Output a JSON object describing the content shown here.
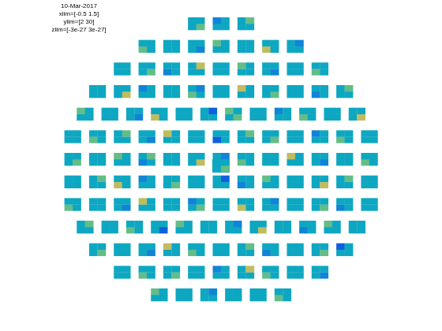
{
  "chart_data": {
    "type": "multiplot",
    "title": [
      "10-Mar-2017",
      "xlim=[-0.5 1.5]",
      "ylim=[2 30]",
      "zlim=[-3e-27 3e-27]"
    ],
    "xlim": [
      -0.5,
      1.5
    ],
    "ylim": [
      2,
      30
    ],
    "zlim": [
      -3e-27,
      3e-27
    ],
    "tick_labels": false,
    "panels": [
      [
        [
          0,
          1e-27
        ],
        [
          0,
          0
        ]
      ],
      [
        [
          0,
          0
        ],
        [
          -1e-27,
          0
        ]
      ],
      [
        [
          0,
          0
        ],
        [
          0,
          1e-27
        ]
      ],
      [
        [
          1e-27,
          0
        ],
        [
          0,
          0
        ]
      ],
      [
        [
          0,
          0
        ],
        [
          0,
          0
        ]
      ],
      [
        [
          0,
          -1e-27
        ],
        [
          0,
          0
        ]
      ],
      [
        [
          0,
          0
        ],
        [
          1e-27,
          0
        ]
      ],
      [
        [
          0,
          0
        ],
        [
          0,
          0
        ]
      ],
      [
        [
          2e-27,
          0
        ],
        [
          0,
          0
        ]
      ],
      [
        [
          0,
          0
        ],
        [
          0,
          -1e-27
        ]
      ],
      [
        [
          0,
          0
        ],
        [
          0,
          0
        ]
      ],
      [
        [
          0,
          1e-27
        ],
        [
          0,
          0
        ]
      ],
      [
        [
          -1e-27,
          0
        ],
        [
          0,
          0
        ]
      ],
      [
        [
          0,
          0
        ],
        [
          0,
          2e-27
        ]
      ],
      [
        [
          0,
          0
        ],
        [
          0,
          0
        ]
      ],
      [
        [
          0,
          0
        ],
        [
          1e-27,
          0
        ]
      ],
      [
        [
          0,
          -1e-27
        ],
        [
          0,
          0
        ]
      ],
      [
        [
          0,
          0
        ],
        [
          0,
          0
        ]
      ],
      [
        [
          1e-27,
          0
        ],
        [
          0,
          0
        ]
      ],
      [
        [
          0,
          0
        ],
        [
          0,
          0
        ]
      ],
      [
        [
          0,
          2e-27
        ],
        [
          0,
          0
        ]
      ],
      [
        [
          0,
          0
        ],
        [
          -1e-27,
          0
        ]
      ],
      [
        [
          0,
          0
        ],
        [
          0,
          0
        ]
      ],
      [
        [
          1e-27,
          0
        ],
        [
          0,
          -1e-27
        ]
      ],
      [
        [
          0,
          0
        ],
        [
          0,
          0
        ]
      ],
      [
        [
          0,
          0
        ],
        [
          2e-27,
          0
        ]
      ],
      [
        [
          0,
          1e-27
        ],
        [
          0,
          0
        ]
      ],
      [
        [
          0,
          0
        ],
        [
          0,
          0
        ]
      ],
      [
        [
          -1e-27,
          0
        ],
        [
          0,
          0
        ]
      ],
      [
        [
          0,
          0
        ],
        [
          0,
          1e-27
        ]
      ],
      [
        [
          0,
          0
        ],
        [
          1e-27,
          0
        ]
      ],
      [
        [
          0,
          0
        ],
        [
          0,
          0
        ]
      ],
      [
        [
          0,
          -1e-27
        ],
        [
          0,
          0
        ]
      ],
      [
        [
          2e-27,
          0
        ],
        [
          0,
          0
        ]
      ],
      [
        [
          0,
          0
        ],
        [
          0,
          0
        ]
      ],
      [
        [
          0,
          0
        ],
        [
          0,
          -2e-27
        ]
      ],
      [
        [
          0,
          1e-27
        ],
        [
          1e-27,
          0
        ]
      ],
      [
        [
          0,
          0
        ],
        [
          0,
          0
        ]
      ],
      [
        [
          0,
          0
        ],
        [
          -1e-27,
          0
        ]
      ],
      [
        [
          1e-27,
          0
        ],
        [
          0,
          0
        ]
      ],
      [
        [
          0,
          0
        ],
        [
          0,
          0
        ]
      ],
      [
        [
          0,
          2e-27
        ],
        [
          0,
          0
        ]
      ],
      [
        [
          0,
          0
        ],
        [
          0,
          0
        ]
      ],
      [
        [
          1e-27,
          0
        ],
        [
          0,
          0
        ]
      ],
      [
        [
          0,
          0
        ],
        [
          0,
          1e-27
        ]
      ],
      [
        [
          0,
          -1e-27
        ],
        [
          0,
          0
        ]
      ],
      [
        [
          0,
          0
        ],
        [
          2e-27,
          0
        ]
      ],
      [
        [
          0,
          0
        ],
        [
          0,
          0
        ]
      ],
      [
        [
          -2e-27,
          0
        ],
        [
          0,
          0
        ]
      ],
      [
        [
          0,
          0
        ],
        [
          0,
          1e-27
        ]
      ],
      [
        [
          0,
          1e-27
        ],
        [
          0,
          0
        ]
      ],
      [
        [
          0,
          0
        ],
        [
          0,
          0
        ]
      ],
      [
        [
          0,
          0
        ],
        [
          -1e-27,
          0
        ]
      ],
      [
        [
          1e-27,
          0
        ],
        [
          0,
          0
        ]
      ],
      [
        [
          0,
          0
        ],
        [
          0,
          0
        ]
      ],
      [
        [
          0,
          1e-27
        ],
        [
          0,
          0
        ]
      ],
      [
        [
          0,
          0
        ],
        [
          0,
          0
        ]
      ],
      [
        [
          0,
          0
        ],
        [
          1e-27,
          0
        ]
      ],
      [
        [
          -1e-27,
          0
        ],
        [
          0,
          1e-27
        ]
      ],
      [
        [
          0,
          0
        ],
        [
          0,
          0
        ]
      ],
      [
        [
          0,
          2e-27
        ],
        [
          0,
          0
        ]
      ],
      [
        [
          0,
          0
        ],
        [
          0,
          -1e-27
        ]
      ],
      [
        [
          1e-27,
          0
        ],
        [
          0,
          0
        ]
      ],
      [
        [
          0,
          0
        ],
        [
          0,
          0
        ]
      ],
      [
        [
          0,
          0
        ],
        [
          2e-27,
          0
        ]
      ],
      [
        [
          0,
          -1e-27
        ],
        [
          0,
          0
        ]
      ],
      [
        [
          0,
          0
        ],
        [
          0,
          0
        ]
      ],
      [
        [
          1e-27,
          0
        ],
        [
          0,
          0
        ]
      ],
      [
        [
          0,
          0
        ],
        [
          0,
          0
        ]
      ],
      [
        [
          0,
          0
        ],
        [
          0,
          1e-27
        ]
      ],
      [
        [
          2e-27,
          0
        ],
        [
          0,
          0
        ]
      ],
      [
        [
          0,
          0
        ],
        [
          -1e-27,
          0
        ]
      ],
      [
        [
          0,
          1e-27
        ],
        [
          0,
          0
        ]
      ],
      [
        [
          0,
          0
        ],
        [
          0,
          0
        ]
      ],
      [
        [
          0,
          0
        ],
        [
          0,
          -2e-27
        ]
      ],
      [
        [
          -1e-27,
          0
        ],
        [
          0,
          0
        ]
      ],
      [
        [
          0,
          0
        ],
        [
          1e-27,
          0
        ]
      ],
      [
        [
          0,
          0
        ],
        [
          0,
          0
        ]
      ],
      [
        [
          0,
          2e-27
        ],
        [
          0,
          0
        ]
      ],
      [
        [
          0,
          0
        ],
        [
          0,
          1e-27
        ]
      ],
      [
        [
          0,
          0
        ],
        [
          0,
          0
        ]
      ],
      [
        [
          1e-27,
          0
        ],
        [
          0,
          0
        ]
      ],
      [
        [
          0,
          0
        ],
        [
          0,
          0
        ]
      ],
      [
        [
          0,
          -1e-27
        ],
        [
          0,
          0
        ]
      ],
      [
        [
          0,
          0
        ],
        [
          2e-27,
          0
        ]
      ],
      [
        [
          0,
          0
        ],
        [
          0,
          0
        ]
      ],
      [
        [
          0,
          1e-27
        ],
        [
          -1e-27,
          0
        ]
      ],
      [
        [
          0,
          0
        ],
        [
          0,
          0
        ]
      ],
      [
        [
          2e-27,
          0
        ],
        [
          0,
          0
        ]
      ],
      [
        [
          0,
          0
        ],
        [
          0,
          -1e-27
        ]
      ],
      [
        [
          0,
          0
        ],
        [
          0,
          0
        ]
      ],
      [
        [
          0,
          1e-27
        ],
        [
          0,
          0
        ]
      ],
      [
        [
          -1e-27,
          0
        ],
        [
          0,
          0
        ]
      ],
      [
        [
          0,
          0
        ],
        [
          0,
          0
        ]
      ],
      [
        [
          0,
          0
        ],
        [
          0,
          1e-27
        ]
      ],
      [
        [
          0,
          0
        ],
        [
          0,
          0
        ]
      ],
      [
        [
          1e-27,
          0
        ],
        [
          0,
          0
        ]
      ],
      [
        [
          0,
          -2e-27
        ],
        [
          0,
          0
        ]
      ],
      [
        [
          0,
          0
        ],
        [
          1e-27,
          0
        ]
      ],
      [
        [
          0,
          0
        ],
        [
          0,
          0
        ]
      ],
      [
        [
          0,
          0
        ],
        [
          0,
          -1e-27
        ]
      ],
      [
        [
          0,
          2e-27
        ],
        [
          0,
          0
        ]
      ],
      [
        [
          0,
          0
        ],
        [
          0,
          0
        ]
      ],
      [
        [
          -1e-27,
          0
        ],
        [
          0,
          0
        ]
      ],
      [
        [
          0,
          0
        ],
        [
          1e-27,
          0
        ]
      ],
      [
        [
          0,
          0
        ],
        [
          0,
          0
        ]
      ],
      [
        [
          0,
          1e-27
        ],
        [
          0,
          0
        ]
      ],
      [
        [
          0,
          0
        ],
        [
          0,
          0
        ]
      ],
      [
        [
          0,
          -1e-27
        ],
        [
          0,
          0
        ]
      ],
      [
        [
          0,
          0
        ],
        [
          2e-27,
          0
        ]
      ],
      [
        [
          1e-27,
          0
        ],
        [
          0,
          0
        ]
      ],
      [
        [
          0,
          0
        ],
        [
          0,
          0
        ]
      ],
      [
        [
          0,
          0
        ],
        [
          0,
          1e-27
        ]
      ],
      [
        [
          -1e-27,
          0
        ],
        [
          0,
          0
        ]
      ],
      [
        [
          0,
          0
        ],
        [
          0,
          0
        ]
      ],
      [
        [
          0,
          1e-27
        ],
        [
          0,
          0
        ]
      ],
      [
        [
          0,
          0
        ],
        [
          -2e-27,
          0
        ]
      ],
      [
        [
          0,
          0
        ],
        [
          0,
          0
        ]
      ],
      [
        [
          1e-27,
          0
        ],
        [
          0,
          0
        ]
      ],
      [
        [
          0,
          1e-27
        ],
        [
          0,
          0
        ]
      ],
      [
        [
          0,
          0
        ],
        [
          0,
          0
        ]
      ],
      [
        [
          0,
          0
        ],
        [
          -1e-27,
          0
        ]
      ],
      [
        [
          0,
          0
        ],
        [
          0,
          2e-27
        ]
      ],
      [
        [
          1e-27,
          0
        ],
        [
          0,
          0
        ]
      ],
      [
        [
          0,
          0
        ],
        [
          0,
          0
        ]
      ],
      [
        [
          0,
          -1e-27
        ],
        [
          0,
          0
        ]
      ],
      [
        [
          0,
          0
        ],
        [
          1e-27,
          0
        ]
      ],
      [
        [
          0,
          0
        ],
        [
          0,
          0
        ]
      ],
      [
        [
          0,
          0
        ],
        [
          0,
          -1e-27
        ]
      ],
      [
        [
          0,
          0
        ],
        [
          0,
          0
        ]
      ],
      [
        [
          0,
          0
        ],
        [
          0,
          0
        ]
      ],
      [
        [
          1e-27,
          0
        ],
        [
          0,
          0
        ]
      ],
      [
        [
          0,
          0
        ],
        [
          0,
          1e-27
        ]
      ],
      [
        [
          0,
          -1e-27
        ],
        [
          0,
          0
        ]
      ],
      [
        [
          0,
          0
        ],
        [
          0,
          0
        ]
      ],
      [
        [
          0,
          0
        ],
        [
          2e-27,
          0
        ]
      ],
      [
        [
          0,
          0
        ],
        [
          0,
          0
        ]
      ],
      [
        [
          -1e-27,
          0
        ],
        [
          0,
          0
        ]
      ],
      [
        [
          0,
          1e-27
        ],
        [
          0,
          0
        ]
      ],
      [
        [
          0,
          0
        ],
        [
          1e-27,
          0
        ]
      ],
      [
        [
          0,
          0
        ],
        [
          0,
          0
        ]
      ],
      [
        [
          0,
          0
        ],
        [
          0,
          -1e-27
        ]
      ],
      [
        [
          1e-27,
          0
        ],
        [
          0,
          0
        ]
      ],
      [
        [
          0,
          0
        ],
        [
          0,
          0
        ]
      ],
      [
        [
          0,
          1e-27
        ],
        [
          0,
          0
        ]
      ]
    ]
  }
}
